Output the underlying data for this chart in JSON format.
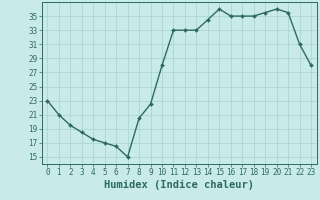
{
  "x": [
    0,
    1,
    2,
    3,
    4,
    5,
    6,
    7,
    8,
    9,
    10,
    11,
    12,
    13,
    14,
    15,
    16,
    17,
    18,
    19,
    20,
    21,
    22,
    23
  ],
  "y": [
    23,
    21,
    19.5,
    18.5,
    17.5,
    17,
    16.5,
    15,
    20.5,
    22.5,
    28,
    33,
    33,
    33,
    34.5,
    36,
    35,
    35,
    35,
    35.5,
    36,
    35.5,
    31,
    28
  ],
  "line_color": "#2e6b5e",
  "marker": "D",
  "marker_size": 2.0,
  "bg_color": "#c8eae8",
  "grid_color": "#b0d8d4",
  "xlabel": "Humidex (Indice chaleur)",
  "xlim": [
    -0.5,
    23.5
  ],
  "ylim": [
    14,
    37
  ],
  "yticks": [
    15,
    17,
    19,
    21,
    23,
    25,
    27,
    29,
    31,
    33,
    35
  ],
  "xticks": [
    0,
    1,
    2,
    3,
    4,
    5,
    6,
    7,
    8,
    9,
    10,
    11,
    12,
    13,
    14,
    15,
    16,
    17,
    18,
    19,
    20,
    21,
    22,
    23
  ],
  "tick_fontsize": 5.5,
  "xlabel_fontsize": 7.5,
  "line_width": 1.0
}
